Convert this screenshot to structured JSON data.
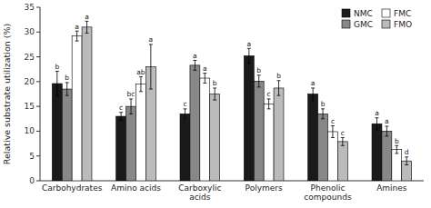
{
  "chart_data": {
    "type": "bar",
    "categories": [
      "Carbohydrates",
      "Amino acids",
      "Carboxylic\nacids",
      "Polymers",
      "Phenolic\ncompounds",
      "Amines"
    ],
    "series": [
      {
        "name": "NMC",
        "color": "#1a1a1a",
        "values": [
          19.6,
          13.0,
          13.5,
          25.2,
          17.5,
          11.5
        ],
        "errors": [
          2.5,
          0.8,
          1.0,
          1.5,
          1.2,
          1.2
        ],
        "letters": [
          "b",
          "c",
          "c",
          "a",
          "a",
          "a"
        ]
      },
      {
        "name": "GMC",
        "color": "#888888",
        "values": [
          18.5,
          15.0,
          23.3,
          20.1,
          13.5,
          10.0
        ],
        "errors": [
          1.3,
          1.5,
          1.0,
          1.2,
          1.0,
          1.0
        ],
        "letters": [
          "b",
          "bc",
          "a",
          "b",
          "b",
          "a"
        ]
      },
      {
        "name": "FMC",
        "color": "#ffffff",
        "values": [
          29.2,
          19.5,
          20.7,
          15.5,
          9.9,
          6.3
        ],
        "errors": [
          1.0,
          1.5,
          1.0,
          1.0,
          1.2,
          0.8
        ],
        "letters": [
          "a",
          "ab",
          "a",
          "c",
          "c",
          "b"
        ]
      },
      {
        "name": "FMO",
        "color": "#bbbbbb",
        "values": [
          31.0,
          23.0,
          17.5,
          18.7,
          7.9,
          4.0
        ],
        "errors": [
          1.2,
          4.5,
          1.2,
          1.5,
          0.8,
          0.8
        ],
        "letters": [
          "a",
          "a",
          "b",
          "b",
          "c",
          "d"
        ]
      }
    ],
    "ylabel": "Relative substrate utilization (%)",
    "ylim": [
      0,
      35
    ],
    "yticks": [
      0,
      5,
      10,
      15,
      20,
      25,
      30,
      35
    ],
    "legend": "upper right",
    "grid": false
  }
}
